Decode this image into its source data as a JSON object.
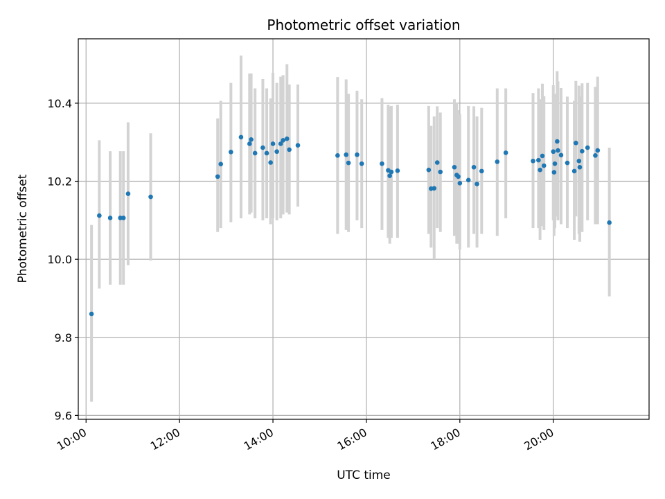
{
  "chart_data": {
    "type": "scatter",
    "title": "Photometric offset variation",
    "xlabel": "UTC time",
    "ylabel": "Photometric offset",
    "xlim": [
      "09:50",
      "22:03"
    ],
    "ylim": [
      9.59,
      10.565
    ],
    "x_ticks": [
      "10:00",
      "12:00",
      "14:00",
      "16:00",
      "18:00",
      "20:00"
    ],
    "y_ticks": [
      "9.6",
      "9.8",
      "10.0",
      "10.2",
      "10.4"
    ],
    "grid": true,
    "colors": {
      "point": "#1f77b4",
      "errorbar": "#d3d3d3",
      "grid": "#b0b0b0"
    },
    "series": [
      {
        "x": [
          "10:07",
          "10:17",
          "10:31",
          "10:44",
          "10:48",
          "10:54",
          "11:23",
          "12:49",
          "12:53",
          "13:06",
          "13:19",
          "13:30",
          "13:32",
          "13:37",
          "13:47",
          "13:52",
          "13:57",
          "14:00",
          "14:05",
          "14:10",
          "14:13",
          "14:18",
          "14:21",
          "14:32",
          "15:23",
          "15:34",
          "15:37",
          "15:48",
          "15:54",
          "16:20",
          "16:28",
          "16:30",
          "16:32",
          "16:40",
          "17:20",
          "17:23",
          "17:27",
          "17:31",
          "17:35",
          "17:53",
          "17:56",
          "17:58",
          "18:00",
          "18:11",
          "18:18",
          "18:22",
          "18:28",
          "18:48",
          "18:59",
          "19:34",
          "19:41",
          "19:43",
          "19:46",
          "19:48",
          "20:00",
          "20:01",
          "20:02",
          "20:05",
          "20:06",
          "20:10",
          "20:18",
          "20:27",
          "20:29",
          "20:33",
          "20:34",
          "20:37",
          "20:44",
          "20:54",
          "20:57",
          "21:12"
        ],
        "y": [
          9.86,
          10.112,
          10.106,
          10.106,
          10.106,
          10.168,
          10.16,
          10.212,
          10.244,
          10.275,
          10.313,
          10.296,
          10.307,
          10.272,
          10.286,
          10.272,
          10.248,
          10.296,
          10.276,
          10.296,
          10.305,
          10.309,
          10.281,
          10.292,
          10.266,
          10.268,
          10.247,
          10.268,
          10.245,
          10.245,
          10.228,
          10.214,
          10.224,
          10.227,
          10.229,
          10.181,
          10.182,
          10.248,
          10.224,
          10.236,
          10.216,
          10.212,
          10.195,
          10.203,
          10.236,
          10.193,
          10.226,
          10.25,
          10.273,
          10.252,
          10.254,
          10.229,
          10.265,
          10.24,
          10.276,
          10.223,
          10.245,
          10.302,
          10.279,
          10.267,
          10.247,
          10.226,
          10.298,
          10.252,
          10.236,
          10.277,
          10.286,
          10.266,
          10.279,
          10.094
        ],
        "err_low": [
          9.635,
          9.925,
          9.935,
          9.935,
          9.935,
          9.985,
          9.997,
          10.07,
          10.08,
          10.095,
          10.105,
          10.115,
          10.12,
          10.105,
          10.1,
          10.105,
          10.09,
          10.105,
          10.1,
          10.105,
          10.115,
          10.12,
          10.115,
          10.135,
          10.065,
          10.075,
          10.07,
          10.1,
          10.08,
          10.075,
          10.055,
          10.04,
          10.055,
          10.055,
          10.065,
          10.03,
          10.0,
          10.08,
          10.07,
          10.06,
          10.04,
          10.04,
          10.025,
          10.03,
          10.065,
          10.03,
          10.065,
          10.06,
          10.105,
          10.08,
          10.08,
          10.05,
          10.085,
          10.075,
          10.1,
          10.06,
          10.08,
          10.11,
          10.1,
          10.09,
          10.08,
          10.05,
          10.11,
          10.065,
          10.045,
          10.07,
          10.1,
          10.09,
          10.09,
          9.905
        ],
        "err_high": [
          10.088,
          10.305,
          10.277,
          10.277,
          10.277,
          10.351,
          10.323,
          10.361,
          10.406,
          10.452,
          10.522,
          10.476,
          10.476,
          10.438,
          10.462,
          10.438,
          10.412,
          10.478,
          10.452,
          10.468,
          10.472,
          10.5,
          10.448,
          10.448,
          10.467,
          10.461,
          10.424,
          10.432,
          10.41,
          10.413,
          10.396,
          10.391,
          10.393,
          10.396,
          10.393,
          10.342,
          10.366,
          10.392,
          10.376,
          10.41,
          10.402,
          10.382,
          10.372,
          10.393,
          10.392,
          10.366,
          10.388,
          10.438,
          10.438,
          10.426,
          10.438,
          10.41,
          10.45,
          10.418,
          10.446,
          10.388,
          10.424,
          10.482,
          10.456,
          10.439,
          10.417,
          10.406,
          10.457,
          10.445,
          10.418,
          10.451,
          10.452,
          10.442,
          10.468,
          10.286
        ]
      }
    ]
  }
}
